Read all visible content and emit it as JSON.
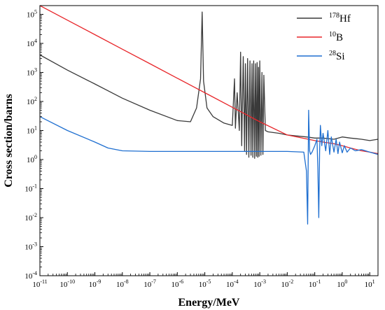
{
  "chart_data": {
    "type": "line",
    "title": "",
    "xlabel": "Energy/MeV",
    "ylabel": "Cross section/barns",
    "xscale": "log",
    "yscale": "log",
    "xlim": [
      1e-11,
      20
    ],
    "ylim": [
      0.0001,
      200000.0
    ],
    "x_ticks": [
      {
        "base": "10",
        "exp": "-11"
      },
      {
        "base": "10",
        "exp": "-10"
      },
      {
        "base": "10",
        "exp": "-9"
      },
      {
        "base": "10",
        "exp": "-8"
      },
      {
        "base": "10",
        "exp": "-7"
      },
      {
        "base": "10",
        "exp": "-6"
      },
      {
        "base": "10",
        "exp": "-5"
      },
      {
        "base": "10",
        "exp": "-4"
      },
      {
        "base": "10",
        "exp": "-3"
      },
      {
        "base": "10",
        "exp": "-2"
      },
      {
        "base": "10",
        "exp": "-1"
      },
      {
        "base": "10",
        "exp": "0"
      },
      {
        "base": "10",
        "exp": "1"
      }
    ],
    "y_ticks": [
      {
        "base": "10",
        "exp": "-4"
      },
      {
        "base": "10",
        "exp": "-3"
      },
      {
        "base": "10",
        "exp": "-2"
      },
      {
        "base": "10",
        "exp": "-1"
      },
      {
        "base": "10",
        "exp": "0"
      },
      {
        "base": "10",
        "exp": "1"
      },
      {
        "base": "10",
        "exp": "2"
      },
      {
        "base": "10",
        "exp": "3"
      },
      {
        "base": "10",
        "exp": "4"
      },
      {
        "base": "10",
        "exp": "5"
      }
    ],
    "legend": {
      "position": "top-right",
      "entries": [
        {
          "sup": "178",
          "name": "Hf",
          "color": "#3a3a3a"
        },
        {
          "sup": "10",
          "name": "B",
          "color": "#e8262a"
        },
        {
          "sup": "28",
          "name": "Si",
          "color": "#1f6fd0"
        }
      ]
    },
    "series": [
      {
        "name": "178Hf",
        "color": "#3a3a3a",
        "x": [
          1e-11,
          1e-10,
          1e-09,
          1e-08,
          1e-07,
          1e-06,
          3e-06,
          5e-06,
          7e-06,
          8e-06,
          9e-06,
          1.2e-05,
          2e-05,
          5e-05,
          0.0001,
          0.00012,
          0.00013,
          0.00015,
          0.00018,
          0.0002,
          0.00022,
          0.00025,
          0.00028,
          0.0003,
          0.00033,
          0.00036,
          0.0004,
          0.00044,
          0.00048,
          0.00052,
          0.00056,
          0.0006,
          0.00065,
          0.0007,
          0.00075,
          0.0008,
          0.00085,
          0.0009,
          0.00095,
          0.001,
          0.0011,
          0.0012,
          0.0013,
          0.0014,
          0.0016,
          0.002,
          0.005,
          0.01,
          0.05,
          0.1,
          0.2,
          0.5,
          1,
          2,
          5,
          10,
          20
        ],
        "y": [
          4000,
          1200,
          400,
          130,
          50,
          22,
          20,
          60,
          600,
          120000,
          500,
          60,
          30,
          18,
          15,
          600,
          12,
          200,
          10,
          5000,
          3,
          3500,
          2,
          2000,
          1.5,
          3000,
          1.2,
          2500,
          1.4,
          2000,
          1.2,
          2500,
          1.1,
          2000,
          1.3,
          2200,
          1.2,
          1500,
          1.3,
          2500,
          1.4,
          1000,
          1.5,
          800,
          10,
          9,
          8,
          7,
          6,
          5.5,
          5.5,
          5,
          6,
          5.5,
          5,
          4.5,
          5
        ]
      },
      {
        "name": "10B",
        "color": "#e8262a",
        "x": [
          1e-11,
          1e-10,
          1e-09,
          1e-08,
          1e-07,
          1e-06,
          1e-05,
          0.0001,
          0.001,
          0.01,
          0.1,
          0.2,
          0.5,
          1,
          2,
          5,
          10,
          20
        ],
        "y": [
          200000,
          63000,
          20000,
          6300,
          2000,
          630,
          200,
          63,
          20,
          7,
          4.5,
          4,
          3.5,
          3,
          2.5,
          2,
          1.8,
          1.6
        ]
      },
      {
        "name": "28Si",
        "color": "#1f6fd0",
        "x": [
          1e-11,
          1e-10,
          1e-09,
          3e-09,
          1e-08,
          1e-07,
          1e-06,
          1e-05,
          0.0001,
          0.001,
          0.01,
          0.04,
          0.05,
          0.055,
          0.06,
          0.065,
          0.07,
          0.08,
          0.1,
          0.12,
          0.13,
          0.14,
          0.15,
          0.16,
          0.18,
          0.2,
          0.25,
          0.3,
          0.35,
          0.4,
          0.5,
          0.6,
          0.7,
          0.8,
          1,
          1.2,
          1.5,
          2,
          3,
          5,
          10,
          20
        ],
        "y": [
          30,
          10,
          4,
          2.5,
          2,
          1.9,
          1.9,
          1.9,
          1.9,
          1.9,
          1.9,
          1.8,
          0.4,
          0.006,
          50,
          2,
          1.5,
          1.8,
          3,
          5,
          0.5,
          0.01,
          2,
          15,
          3,
          8,
          2,
          10,
          1.5,
          6,
          1.8,
          5,
          1.6,
          4,
          1.7,
          3,
          1.8,
          2.5,
          2,
          2.2,
          1.8,
          1.5
        ]
      }
    ]
  }
}
